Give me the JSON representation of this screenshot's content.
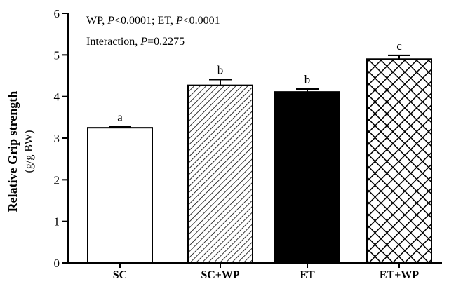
{
  "chart_data": {
    "type": "bar",
    "categories": [
      "SC",
      "SC+WP",
      "ET",
      "ET+WP"
    ],
    "values": [
      3.25,
      4.27,
      4.11,
      4.9
    ],
    "errors": [
      0.03,
      0.14,
      0.07,
      0.09
    ],
    "significance_letters": [
      "a",
      "b",
      "b",
      "c"
    ],
    "fill_styles": [
      "white",
      "diagonal-hatch",
      "solid-black",
      "crosshatch"
    ],
    "ylabel_line1": "Relative Grip strength",
    "ylabel_line2": "(g/g BW)",
    "xlabel": "",
    "ylim": [
      0,
      6
    ],
    "yticks": [
      0,
      1,
      2,
      3,
      4,
      5,
      6
    ],
    "annotations": {
      "line1": {
        "a": "WP, ",
        "p1": "P",
        "b": "<0.0001; ET, ",
        "p2": "P",
        "c": "<0.0001"
      },
      "line2": {
        "a": "Interaction, ",
        "p": "P",
        "b": "=0.2275"
      }
    },
    "colors": {
      "stroke": "#000000",
      "fill_white": "#ffffff",
      "fill_black": "#000000"
    }
  }
}
